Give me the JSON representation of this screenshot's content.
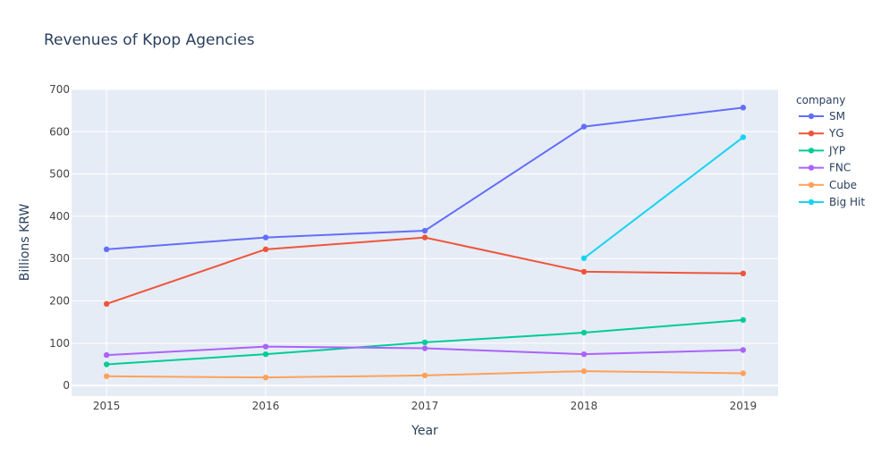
{
  "chart_data": {
    "type": "line",
    "title": "Revenues of Kpop Agencies",
    "xlabel": "Year",
    "ylabel": "Billions KRW",
    "x": [
      2015,
      2016,
      2017,
      2018,
      2019
    ],
    "xlim": [
      2014.78,
      2019.22
    ],
    "ylim": [
      -25,
      700
    ],
    "xticks": [
      2015,
      2016,
      2017,
      2018,
      2019
    ],
    "yticks": [
      0,
      100,
      200,
      300,
      400,
      500,
      600,
      700
    ],
    "grid": true,
    "legend": {
      "title": "company",
      "position": "right"
    },
    "series": [
      {
        "name": "SM",
        "color": "#636efa",
        "x": [
          2015,
          2016,
          2017,
          2018,
          2019
        ],
        "values": [
          322,
          350,
          366,
          612,
          657
        ]
      },
      {
        "name": "YG",
        "color": "#ef553b",
        "x": [
          2015,
          2016,
          2017,
          2018,
          2019
        ],
        "values": [
          193,
          322,
          350,
          269,
          265
        ]
      },
      {
        "name": "JYP",
        "color": "#00cc96",
        "x": [
          2015,
          2016,
          2017,
          2018,
          2019
        ],
        "values": [
          50,
          74,
          102,
          125,
          155
        ]
      },
      {
        "name": "FNC",
        "color": "#ab63fa",
        "x": [
          2015,
          2016,
          2017,
          2018,
          2019
        ],
        "values": [
          72,
          92,
          88,
          74,
          84
        ]
      },
      {
        "name": "Cube",
        "color": "#ffa15a",
        "x": [
          2015,
          2016,
          2017,
          2018,
          2019
        ],
        "values": [
          22,
          19,
          24,
          34,
          29
        ]
      },
      {
        "name": "Big Hit",
        "color": "#19d3f3",
        "x": [
          2018,
          2019
        ],
        "values": [
          301,
          587
        ]
      }
    ]
  }
}
